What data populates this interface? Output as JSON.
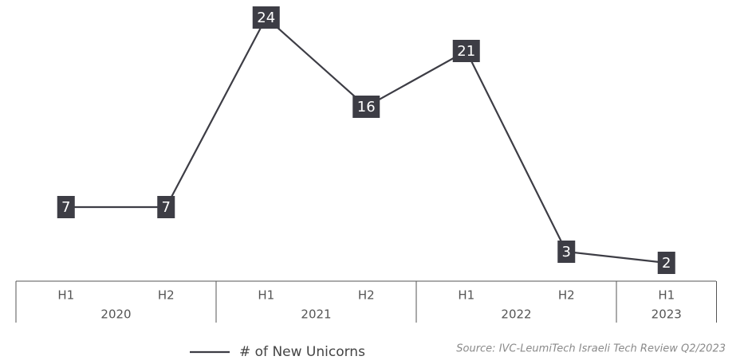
{
  "chart_data": {
    "type": "line",
    "groups": [
      {
        "label": "2020",
        "categories": [
          "H1",
          "H2"
        ]
      },
      {
        "label": "2021",
        "categories": [
          "H1",
          "H2"
        ]
      },
      {
        "label": "2022",
        "categories": [
          "H1",
          "H2"
        ]
      },
      {
        "label": "2023",
        "categories": [
          "H1"
        ]
      }
    ],
    "series": [
      {
        "name": "# of New Unicorns",
        "color": "#3d3d45",
        "values": [
          7,
          7,
          24,
          16,
          21,
          3,
          2
        ]
      }
    ],
    "source": "Source: IVC-LeumiTech Israeli Tech Review Q2/2023",
    "legend": "bottom"
  }
}
